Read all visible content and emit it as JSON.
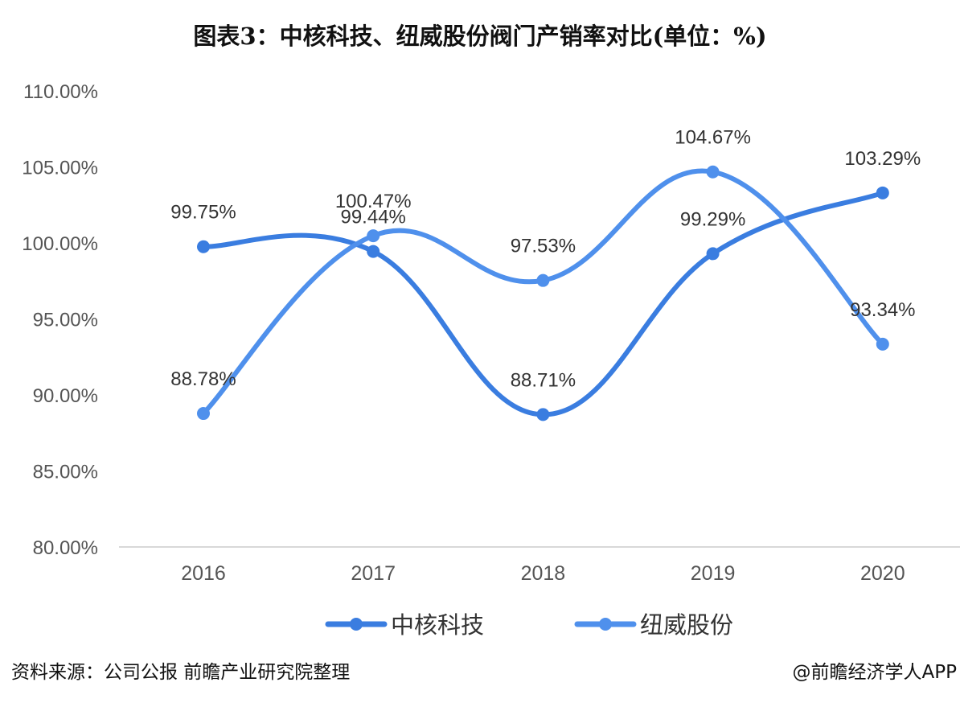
{
  "chart_data": {
    "type": "line",
    "title": "图表3：中核科技、纽威股份阀门产销率对比(单位：%)",
    "categories": [
      "2016",
      "2017",
      "2018",
      "2019",
      "2020"
    ],
    "series": [
      {
        "name": "中核科技",
        "color": "#3a7de0",
        "values": [
          99.75,
          99.44,
          88.71,
          99.29,
          103.29
        ]
      },
      {
        "name": "纽威股份",
        "color": "#4f90ec",
        "values": [
          88.78,
          100.47,
          97.53,
          104.67,
          93.34
        ]
      }
    ],
    "ylim": [
      80,
      110
    ],
    "yticks": [
      80,
      85,
      90,
      95,
      100,
      105,
      110
    ],
    "ytick_labels": [
      "80.00%",
      "85.00%",
      "90.00%",
      "95.00%",
      "100.00%",
      "105.00%",
      "110.00%"
    ],
    "data_labels": [
      [
        "99.75%",
        "99.44%",
        "88.71%",
        "99.29%",
        "103.29%"
      ],
      [
        "88.78%",
        "100.47%",
        "97.53%",
        "104.67%",
        "93.34%"
      ]
    ],
    "legend": "bottom",
    "grid": false
  },
  "footer": {
    "source": "资料来源：公司公报 前瞻产业研究院整理",
    "brand": "@前瞻经济学人APP"
  }
}
